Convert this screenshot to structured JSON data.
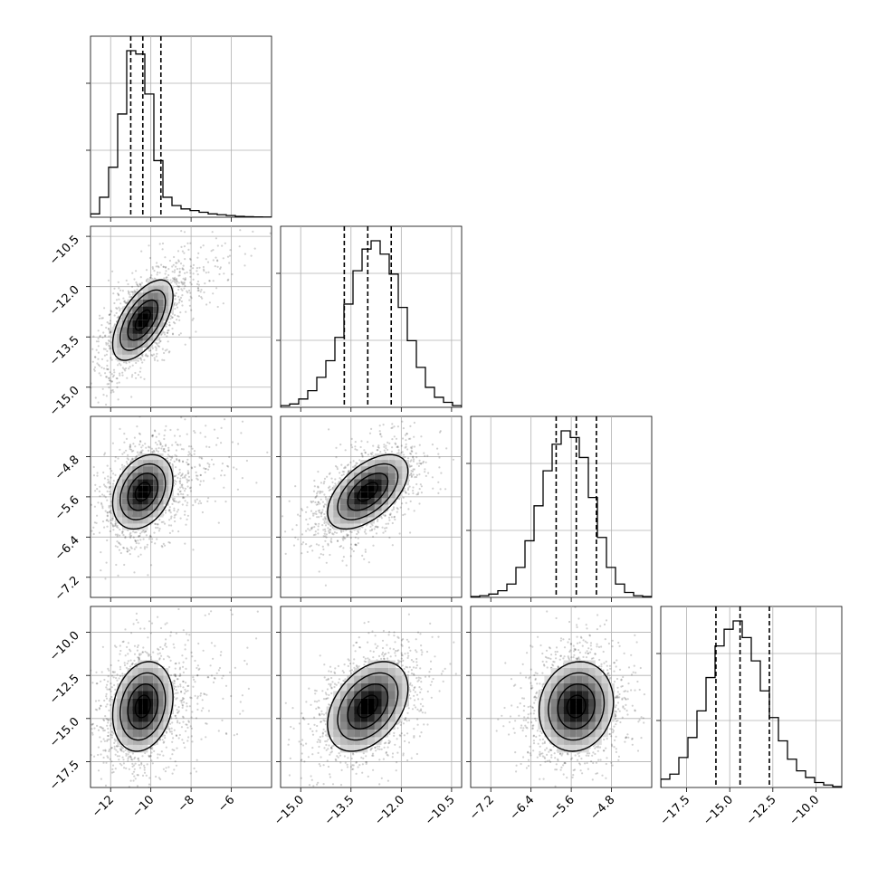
{
  "chart_data": {
    "type": "corner",
    "grid": true,
    "colors": {
      "scatter": "#000000",
      "lines": "#000000",
      "grid": "#b0b0b0"
    },
    "parameters": [
      {
        "range": [
          -13,
          -4
        ],
        "ticks": [
          -12,
          -10,
          -8,
          -6
        ],
        "tick_labels": [
          "−12",
          "−10",
          "−8",
          "−6"
        ],
        "mean": -10.4,
        "sd": 0.75,
        "skew": 1.3,
        "quantiles": [
          -11.0,
          -10.4,
          -9.5
        ],
        "hist_counts": [
          0.02,
          0.12,
          0.3,
          0.62,
          1.0,
          0.98,
          0.74,
          0.34,
          0.12,
          0.07,
          0.05,
          0.04,
          0.03,
          0.02,
          0.015,
          0.01,
          0.005,
          0.003,
          0.002,
          0.001
        ]
      },
      {
        "range": [
          -15.6,
          -10.2
        ],
        "ticks": [
          -15.0,
          -13.5,
          -12.0,
          -10.5
        ],
        "tick_labels": [
          "−15.0",
          "−13.5",
          "−12.0",
          "−10.5"
        ],
        "mean": -13.0,
        "sd": 0.6,
        "skew": 0,
        "quantiles": [
          -13.7,
          -13.0,
          -12.3
        ],
        "hist_counts": [
          0.01,
          0.02,
          0.05,
          0.1,
          0.18,
          0.28,
          0.42,
          0.62,
          0.82,
          0.95,
          1.0,
          0.92,
          0.8,
          0.6,
          0.4,
          0.24,
          0.12,
          0.06,
          0.03,
          0.01
        ]
      },
      {
        "range": [
          -7.6,
          -4.0
        ],
        "ticks": [
          -7.2,
          -6.4,
          -5.6,
          -4.8
        ],
        "tick_labels": [
          "−7.2",
          "−6.4",
          "−5.6",
          "−4.8"
        ],
        "mean": -5.5,
        "sd": 0.37,
        "skew": 0,
        "quantiles": [
          -5.9,
          -5.5,
          -5.1
        ],
        "hist_counts": [
          0.005,
          0.01,
          0.02,
          0.04,
          0.08,
          0.18,
          0.34,
          0.55,
          0.76,
          0.92,
          1.0,
          0.96,
          0.84,
          0.6,
          0.36,
          0.18,
          0.08,
          0.03,
          0.01,
          0.005
        ]
      },
      {
        "range": [
          -19,
          -8.5
        ],
        "ticks": [
          -17.5,
          -15.0,
          -12.5,
          -10.0
        ],
        "tick_labels": [
          "−17.5",
          "−15.0",
          "−12.5",
          "−10.0"
        ],
        "mean": -14.3,
        "sd": 1.3,
        "skew": 0,
        "quantiles": [
          -15.8,
          -14.4,
          -12.7
        ],
        "hist_counts": [
          0.05,
          0.08,
          0.18,
          0.3,
          0.46,
          0.66,
          0.85,
          0.95,
          1.0,
          0.9,
          0.76,
          0.58,
          0.42,
          0.28,
          0.17,
          0.1,
          0.06,
          0.03,
          0.015,
          0.005
        ]
      }
    ],
    "correlations": [
      {
        "row": 1,
        "col": 0,
        "rho": 0.6
      },
      {
        "row": 2,
        "col": 0,
        "rho": 0.3
      },
      {
        "row": 2,
        "col": 1,
        "rho": 0.55
      },
      {
        "row": 3,
        "col": 0,
        "rho": 0.2
      },
      {
        "row": 3,
        "col": 1,
        "rho": 0.4
      },
      {
        "row": 3,
        "col": 2,
        "rho": 0.1
      }
    ]
  }
}
